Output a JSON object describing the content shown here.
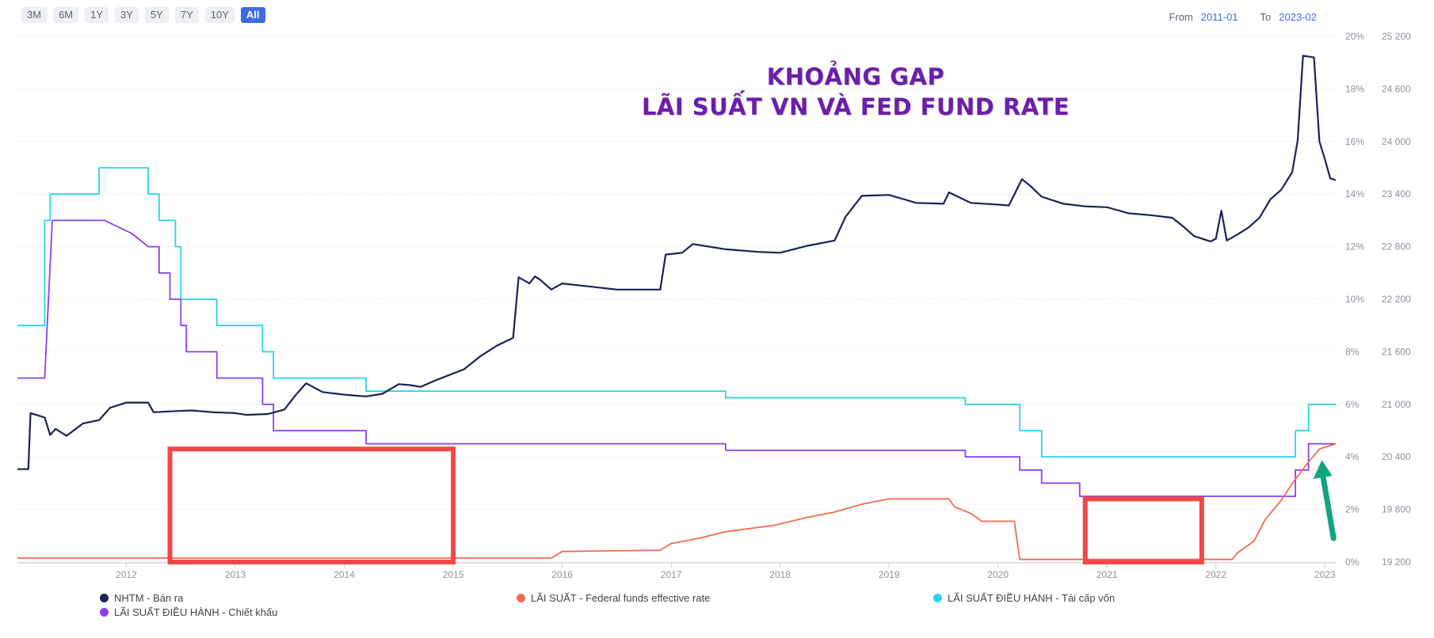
{
  "range_buttons": [
    "3M",
    "6M",
    "1Y",
    "3Y",
    "5Y",
    "7Y",
    "10Y",
    "All"
  ],
  "active_range": "All",
  "date_range": {
    "from_label": "From",
    "from_value": "2011-01",
    "to_label": "To",
    "to_value": "2023-02"
  },
  "headline": {
    "line1": "KHOẢNG GAP",
    "line2": "LÃI SUẤT VN VÀ FED FUND RATE"
  },
  "legend": [
    {
      "label": "NHTM - Bán ra",
      "color": "#1a2353"
    },
    {
      "label": "LÃI SUẤT - Federal funds effective rate",
      "color": "#f26b4f"
    },
    {
      "label": "LÃI SUẤT ĐIỀU HÀNH - Tái cấp vốn",
      "color": "#2ad3ea"
    },
    {
      "label": "LÃI SUẤT ĐIỀU HÀNH - Chiết khấu",
      "color": "#8a3ff0"
    }
  ],
  "annotation_color": "#f04848",
  "arrow_color": "#14a37f",
  "chart_data": {
    "type": "line",
    "x_range": [
      2011.0,
      2023.1
    ],
    "x_ticks": [
      "2012",
      "2013",
      "2014",
      "2015",
      "2016",
      "2017",
      "2018",
      "2019",
      "2020",
      "2021",
      "2022",
      "2023"
    ],
    "y_left_ticks": [
      "0%",
      "2%",
      "4%",
      "6%",
      "8%",
      "10%",
      "12%",
      "14%",
      "16%",
      "18%",
      "20%"
    ],
    "y_right_ticks": [
      "19 200",
      "19 800",
      "20 400",
      "21 000",
      "21 600",
      "22 200",
      "22 800",
      "23 400",
      "24 000",
      "24 600",
      "25 200"
    ],
    "ylim_percent": [
      0,
      20
    ],
    "ylim_right": [
      19200,
      25200
    ],
    "series": [
      {
        "name": "LÃI SUẤT ĐIỀU HÀNH - Tái cấp vốn",
        "axis": "percent",
        "points": [
          [
            2011.0,
            9
          ],
          [
            2011.25,
            9
          ],
          [
            2011.25,
            13
          ],
          [
            2011.3,
            13
          ],
          [
            2011.3,
            14
          ],
          [
            2011.75,
            14
          ],
          [
            2011.75,
            15
          ],
          [
            2012.2,
            15
          ],
          [
            2012.2,
            14
          ],
          [
            2012.3,
            14
          ],
          [
            2012.3,
            13
          ],
          [
            2012.45,
            13
          ],
          [
            2012.45,
            12
          ],
          [
            2012.5,
            12
          ],
          [
            2012.5,
            10
          ],
          [
            2012.83,
            10
          ],
          [
            2012.83,
            9
          ],
          [
            2013.25,
            9
          ],
          [
            2013.25,
            8
          ],
          [
            2013.35,
            8
          ],
          [
            2013.35,
            7
          ],
          [
            2014.2,
            7
          ],
          [
            2014.2,
            6.5
          ],
          [
            2017.5,
            6.5
          ],
          [
            2017.5,
            6.25
          ],
          [
            2019.7,
            6.25
          ],
          [
            2019.7,
            6
          ],
          [
            2020.2,
            6
          ],
          [
            2020.2,
            5
          ],
          [
            2020.4,
            5
          ],
          [
            2020.4,
            4
          ],
          [
            2022.73,
            4
          ],
          [
            2022.73,
            5
          ],
          [
            2022.85,
            5
          ],
          [
            2022.85,
            6
          ],
          [
            2023.1,
            6
          ]
        ]
      },
      {
        "name": "LÃI SUẤT ĐIỀU HÀNH - Chiết khấu",
        "axis": "percent",
        "points": [
          [
            2011.0,
            7
          ],
          [
            2011.25,
            7
          ],
          [
            2011.32,
            13
          ],
          [
            2011.8,
            13
          ],
          [
            2012.05,
            12.5
          ],
          [
            2012.2,
            12
          ],
          [
            2012.3,
            12
          ],
          [
            2012.3,
            11
          ],
          [
            2012.4,
            11
          ],
          [
            2012.4,
            10
          ],
          [
            2012.5,
            10
          ],
          [
            2012.5,
            9
          ],
          [
            2012.55,
            9
          ],
          [
            2012.55,
            8
          ],
          [
            2012.83,
            8
          ],
          [
            2012.83,
            7
          ],
          [
            2013.25,
            7
          ],
          [
            2013.25,
            6
          ],
          [
            2013.35,
            6
          ],
          [
            2013.35,
            5
          ],
          [
            2014.2,
            5
          ],
          [
            2014.2,
            4.5
          ],
          [
            2017.5,
            4.5
          ],
          [
            2017.5,
            4.25
          ],
          [
            2019.7,
            4.25
          ],
          [
            2019.7,
            4
          ],
          [
            2020.2,
            4
          ],
          [
            2020.2,
            3.5
          ],
          [
            2020.4,
            3.5
          ],
          [
            2020.4,
            3
          ],
          [
            2020.75,
            3
          ],
          [
            2020.75,
            2.5
          ],
          [
            2022.73,
            2.5
          ],
          [
            2022.73,
            3.5
          ],
          [
            2022.85,
            3.5
          ],
          [
            2022.85,
            4.5
          ],
          [
            2023.1,
            4.5
          ]
        ]
      },
      {
        "name": "LÃI SUẤT - Federal funds effective rate",
        "axis": "percent",
        "points": [
          [
            2011.0,
            0.15
          ],
          [
            2015.9,
            0.15
          ],
          [
            2016.0,
            0.4
          ],
          [
            2016.9,
            0.45
          ],
          [
            2017.0,
            0.7
          ],
          [
            2017.25,
            0.9
          ],
          [
            2017.5,
            1.15
          ],
          [
            2017.95,
            1.4
          ],
          [
            2018.25,
            1.7
          ],
          [
            2018.5,
            1.9
          ],
          [
            2018.75,
            2.2
          ],
          [
            2019.0,
            2.4
          ],
          [
            2019.55,
            2.4
          ],
          [
            2019.6,
            2.1
          ],
          [
            2019.75,
            1.85
          ],
          [
            2019.85,
            1.55
          ],
          [
            2020.15,
            1.55
          ],
          [
            2020.2,
            0.1
          ],
          [
            2022.15,
            0.1
          ],
          [
            2022.2,
            0.35
          ],
          [
            2022.35,
            0.8
          ],
          [
            2022.45,
            1.6
          ],
          [
            2022.6,
            2.35
          ],
          [
            2022.72,
            3.1
          ],
          [
            2022.85,
            3.8
          ],
          [
            2022.95,
            4.3
          ],
          [
            2023.1,
            4.5
          ]
        ]
      },
      {
        "name": "NHTM - Bán ra",
        "axis": "fx",
        "points": [
          [
            2011.0,
            20260
          ],
          [
            2011.1,
            20260
          ],
          [
            2011.12,
            20900
          ],
          [
            2011.25,
            20850
          ],
          [
            2011.3,
            20650
          ],
          [
            2011.35,
            20720
          ],
          [
            2011.45,
            20640
          ],
          [
            2011.6,
            20780
          ],
          [
            2011.75,
            20820
          ],
          [
            2011.85,
            20960
          ],
          [
            2012.0,
            21020
          ],
          [
            2012.2,
            21020
          ],
          [
            2012.25,
            20910
          ],
          [
            2012.4,
            20920
          ],
          [
            2012.6,
            20930
          ],
          [
            2012.8,
            20910
          ],
          [
            2013.0,
            20900
          ],
          [
            2013.1,
            20880
          ],
          [
            2013.3,
            20890
          ],
          [
            2013.45,
            20940
          ],
          [
            2013.5,
            21020
          ],
          [
            2013.55,
            21100
          ],
          [
            2013.65,
            21240
          ],
          [
            2013.8,
            21140
          ],
          [
            2014.0,
            21110
          ],
          [
            2014.2,
            21090
          ],
          [
            2014.35,
            21120
          ],
          [
            2014.5,
            21230
          ],
          [
            2014.6,
            21220
          ],
          [
            2014.7,
            21200
          ],
          [
            2014.85,
            21280
          ],
          [
            2015.1,
            21400
          ],
          [
            2015.25,
            21550
          ],
          [
            2015.4,
            21670
          ],
          [
            2015.55,
            21760
          ],
          [
            2015.6,
            22450
          ],
          [
            2015.7,
            22380
          ],
          [
            2015.75,
            22460
          ],
          [
            2015.8,
            22420
          ],
          [
            2015.9,
            22310
          ],
          [
            2016.0,
            22380
          ],
          [
            2016.5,
            22310
          ],
          [
            2016.9,
            22310
          ],
          [
            2016.95,
            22710
          ],
          [
            2017.1,
            22730
          ],
          [
            2017.2,
            22830
          ],
          [
            2017.5,
            22770
          ],
          [
            2017.8,
            22740
          ],
          [
            2018.0,
            22730
          ],
          [
            2018.25,
            22810
          ],
          [
            2018.5,
            22870
          ],
          [
            2018.6,
            23140
          ],
          [
            2018.75,
            23380
          ],
          [
            2019.0,
            23390
          ],
          [
            2019.25,
            23300
          ],
          [
            2019.5,
            23290
          ],
          [
            2019.55,
            23420
          ],
          [
            2019.75,
            23300
          ],
          [
            2020.0,
            23280
          ],
          [
            2020.1,
            23270
          ],
          [
            2020.22,
            23570
          ],
          [
            2020.3,
            23490
          ],
          [
            2020.4,
            23370
          ],
          [
            2020.6,
            23290
          ],
          [
            2020.8,
            23260
          ],
          [
            2021.0,
            23250
          ],
          [
            2021.2,
            23180
          ],
          [
            2021.4,
            23160
          ],
          [
            2021.6,
            23130
          ],
          [
            2021.7,
            23030
          ],
          [
            2021.8,
            22920
          ],
          [
            2021.95,
            22860
          ],
          [
            2022.0,
            22890
          ],
          [
            2022.05,
            23210
          ],
          [
            2022.1,
            22870
          ],
          [
            2022.2,
            22940
          ],
          [
            2022.3,
            23020
          ],
          [
            2022.4,
            23130
          ],
          [
            2022.5,
            23340
          ],
          [
            2022.6,
            23450
          ],
          [
            2022.7,
            23650
          ],
          [
            2022.75,
            24010
          ],
          [
            2022.8,
            24980
          ],
          [
            2022.9,
            24960
          ],
          [
            2022.95,
            24000
          ],
          [
            2023.0,
            23800
          ],
          [
            2023.05,
            23580
          ],
          [
            2023.1,
            23560
          ]
        ]
      }
    ]
  }
}
